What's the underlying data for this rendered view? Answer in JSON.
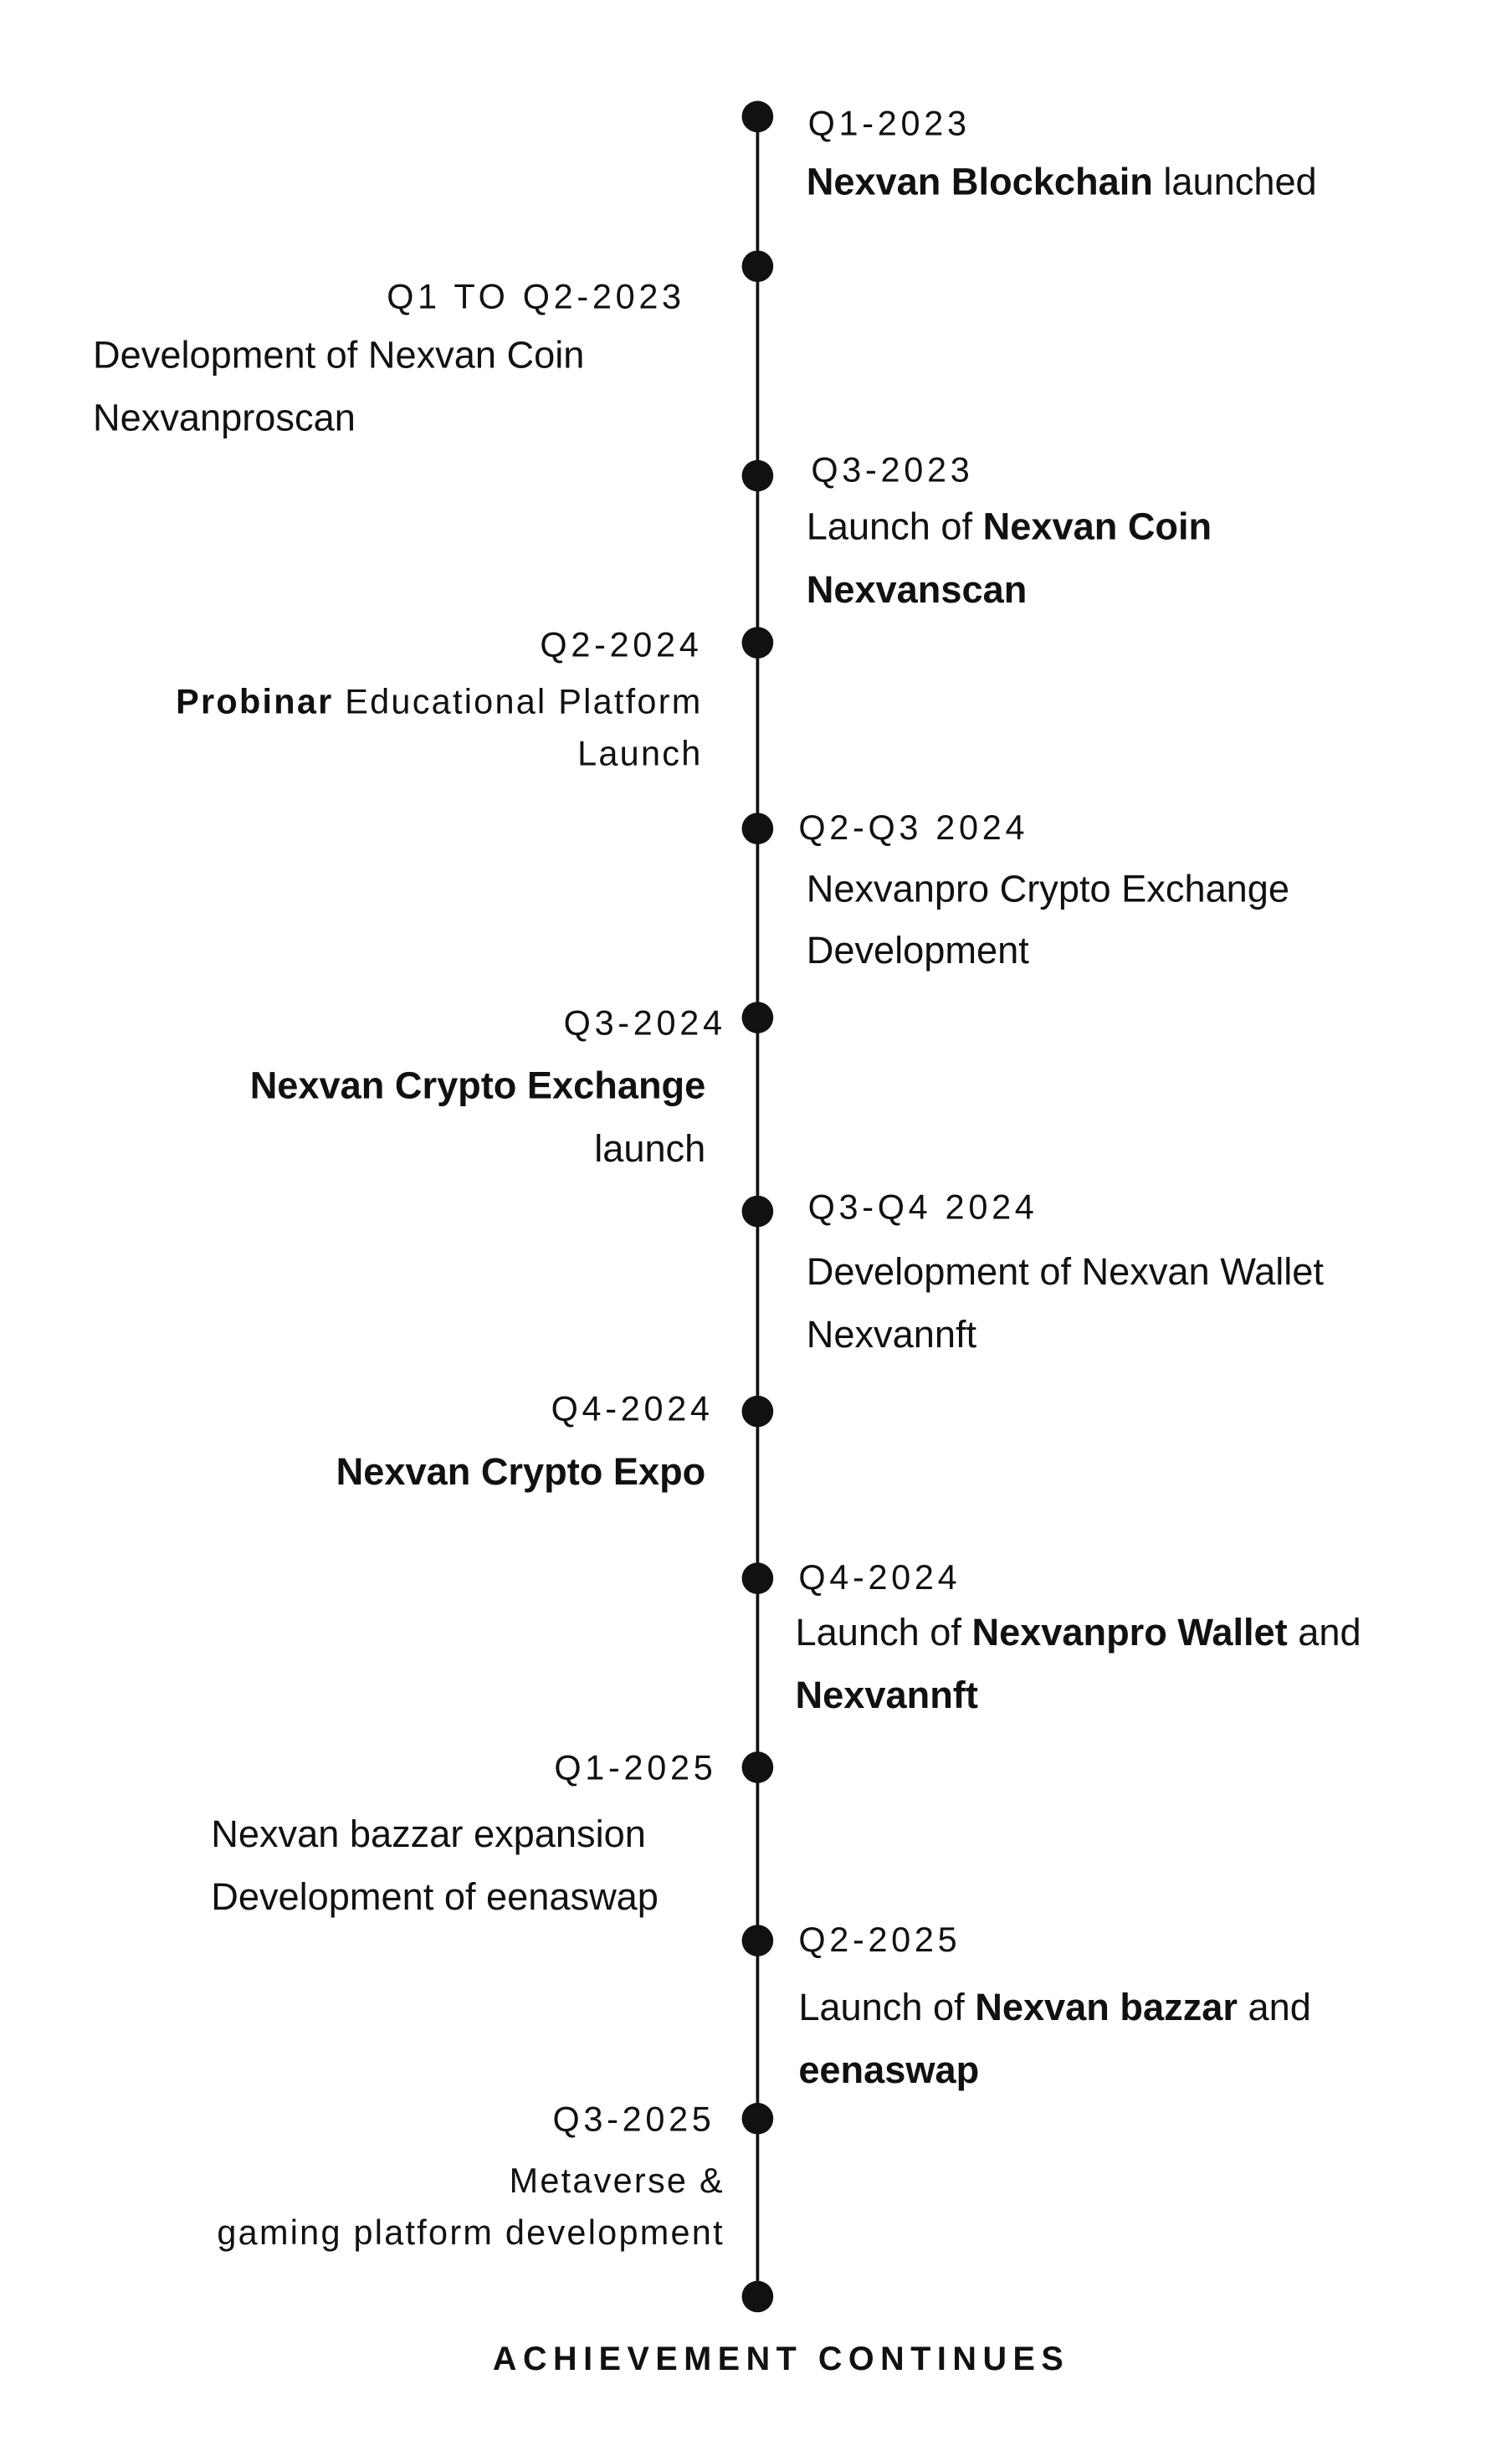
{
  "items": [
    {
      "period": "Q1-2023",
      "lines": [
        [
          {
            "text": "Nexvan Blockchain",
            "bold": true
          },
          {
            "text": " launched"
          }
        ]
      ]
    },
    {
      "period": "Q1 TO Q2-2023",
      "lines": [
        [
          {
            "text": "Development of Nexvan Coin"
          }
        ],
        [
          {
            "text": "Nexvanproscan"
          }
        ]
      ]
    },
    {
      "period": "Q3-2023",
      "lines": [
        [
          {
            "text": "Launch of "
          },
          {
            "text": "Nexvan Coin",
            "bold": true
          }
        ],
        [
          {
            "text": "Nexvanscan",
            "bold": true
          }
        ]
      ]
    },
    {
      "period": "Q2-2024",
      "lines": [
        [
          {
            "text": "Probinar",
            "bold": true
          },
          {
            "text": " Educational Platform"
          }
        ],
        [
          {
            "text": "Launch"
          }
        ]
      ]
    },
    {
      "period": "Q2-Q3 2024",
      "lines": [
        [
          {
            "text": "Nexvanpro Crypto Exchange"
          }
        ],
        [
          {
            "text": "Development"
          }
        ]
      ]
    },
    {
      "period": "Q3-2024",
      "lines": [
        [
          {
            "text": "Nexvan Crypto Exchange",
            "bold": true
          }
        ],
        [
          {
            "text": "launch"
          }
        ]
      ]
    },
    {
      "period": "Q3-Q4 2024",
      "lines": [
        [
          {
            "text": "Development of Nexvan Wallet"
          }
        ],
        [
          {
            "text": "Nexvannft"
          }
        ]
      ]
    },
    {
      "period": "Q4-2024",
      "lines": [
        [
          {
            "text": "Nexvan Crypto Expo",
            "bold": true
          }
        ]
      ]
    },
    {
      "period": "Q4-2024",
      "lines": [
        [
          {
            "text": "Launch of "
          },
          {
            "text": "Nexvanpro Wallet",
            "bold": true
          },
          {
            "text": " and"
          }
        ],
        [
          {
            "text": "Nexvannft",
            "bold": true
          }
        ]
      ]
    },
    {
      "period": "Q1-2025",
      "lines": [
        [
          {
            "text": "Nexvan bazzar expansion"
          }
        ],
        [
          {
            "text": "Development of eenaswap"
          }
        ]
      ]
    },
    {
      "period": "Q2-2025",
      "lines": [
        [
          {
            "text": "Launch of "
          },
          {
            "text": "Nexvan bazzar",
            "bold": true
          },
          {
            "text": " and"
          }
        ],
        [
          {
            "text": "eenaswap",
            "bold": true
          }
        ]
      ]
    },
    {
      "period": "Q3-2025",
      "lines": [
        [
          {
            "text": "Metaverse &"
          }
        ],
        [
          {
            "text": "gaming platform development"
          }
        ]
      ]
    }
  ],
  "footer": "ACHIEVEMENT CONTINUES"
}
